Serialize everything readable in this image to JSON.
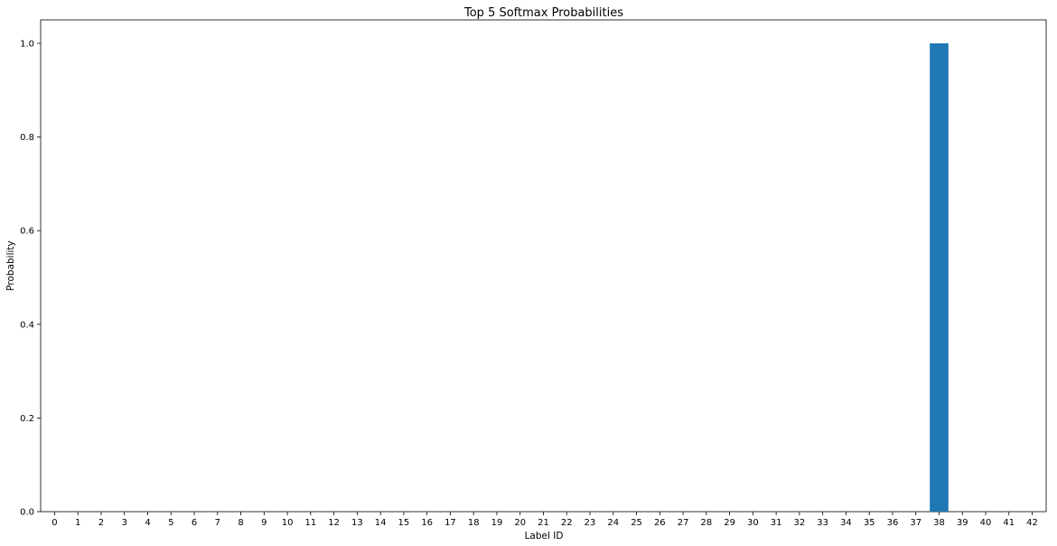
{
  "chart_data": {
    "type": "bar",
    "title": "Top 5 Softmax Probabilities",
    "xlabel": "Label ID",
    "ylabel": "Probability",
    "ylim": [
      0,
      1.05
    ],
    "yticks": [
      "0.0",
      "0.2",
      "0.4",
      "0.6",
      "0.8",
      "1.0"
    ],
    "categories": [
      "0",
      "1",
      "2",
      "3",
      "4",
      "5",
      "6",
      "7",
      "8",
      "9",
      "10",
      "11",
      "12",
      "13",
      "14",
      "15",
      "16",
      "17",
      "18",
      "19",
      "20",
      "21",
      "22",
      "23",
      "24",
      "25",
      "26",
      "27",
      "28",
      "29",
      "30",
      "31",
      "32",
      "33",
      "34",
      "35",
      "36",
      "37",
      "38",
      "39",
      "40",
      "41",
      "42"
    ],
    "values": [
      0,
      0,
      0,
      0,
      0,
      0,
      0,
      0,
      0,
      0,
      0,
      0,
      0,
      0,
      0,
      0,
      0,
      0,
      0,
      0,
      0,
      0,
      0,
      0,
      0,
      0,
      0,
      0,
      0,
      0,
      0,
      0,
      0,
      0,
      0,
      0,
      0,
      0,
      1.0,
      0,
      0,
      0,
      0
    ],
    "bar_color": "#1f77b4",
    "grid": false,
    "legend": "none"
  }
}
